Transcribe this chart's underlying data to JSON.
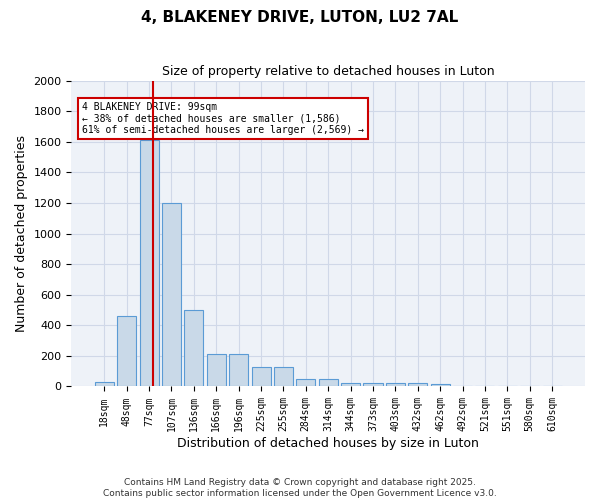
{
  "title": "4, BLAKENEY DRIVE, LUTON, LU2 7AL",
  "subtitle": "Size of property relative to detached houses in Luton",
  "xlabel": "Distribution of detached houses by size in Luton",
  "ylabel": "Number of detached properties",
  "bin_labels": [
    "18sqm",
    "48sqm",
    "77sqm",
    "107sqm",
    "136sqm",
    "166sqm",
    "196sqm",
    "225sqm",
    "255sqm",
    "284sqm",
    "314sqm",
    "344sqm",
    "373sqm",
    "403sqm",
    "432sqm",
    "462sqm",
    "492sqm",
    "521sqm",
    "551sqm",
    "580sqm",
    "610sqm"
  ],
  "bar_values": [
    30,
    460,
    1610,
    1200,
    500,
    210,
    210,
    130,
    130,
    50,
    50,
    25,
    25,
    20,
    20,
    15,
    0,
    0,
    0,
    0,
    0
  ],
  "bar_color": "#c9d9e8",
  "bar_edge_color": "#5b9bd5",
  "ylim": [
    0,
    2000
  ],
  "yticks": [
    0,
    200,
    400,
    600,
    800,
    1000,
    1200,
    1400,
    1600,
    1800,
    2000
  ],
  "property_size_sqm": 99,
  "bin_edges_sqm": [
    18,
    48,
    77,
    107,
    136,
    166,
    196,
    225,
    255,
    284,
    314,
    344,
    373,
    403,
    432,
    462,
    492,
    521,
    551,
    580,
    610
  ],
  "property_line_color": "#cc0000",
  "annotation_title": "4 BLAKENEY DRIVE: 99sqm",
  "annotation_line1": "← 38% of detached houses are smaller (1,586)",
  "annotation_line2": "61% of semi-detached houses are larger (2,569) →",
  "annotation_box_color": "#cc0000",
  "grid_color": "#d0d8e8",
  "background_color": "#eef2f8",
  "footer1": "Contains HM Land Registry data © Crown copyright and database right 2025.",
  "footer2": "Contains public sector information licensed under the Open Government Licence v3.0."
}
